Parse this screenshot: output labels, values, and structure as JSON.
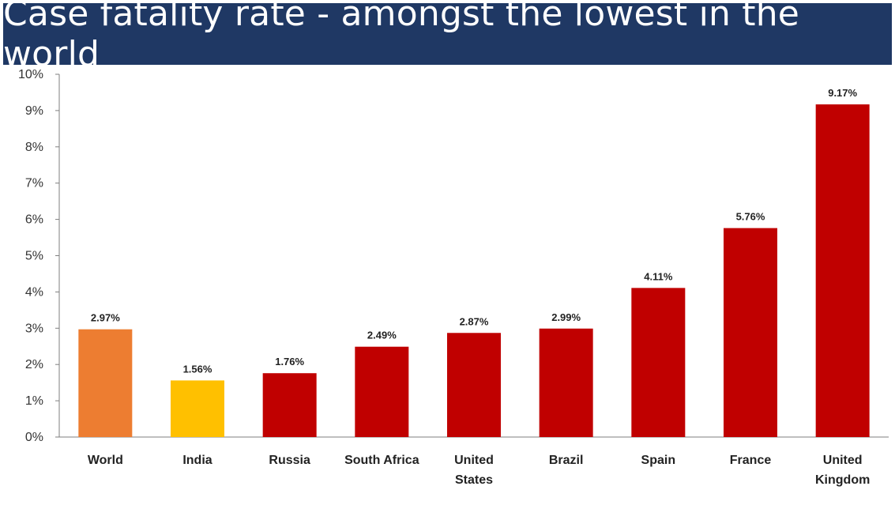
{
  "chart_data": {
    "type": "bar",
    "title": "Case fatality rate - amongst the lowest in the world",
    "categories": [
      [
        "World"
      ],
      [
        "India"
      ],
      [
        "Russia"
      ],
      [
        "South Africa"
      ],
      [
        "United",
        "States"
      ],
      [
        "Brazil"
      ],
      [
        "Spain"
      ],
      [
        "France"
      ],
      [
        "United",
        "Kingdom"
      ]
    ],
    "values": [
      2.97,
      1.56,
      1.76,
      2.49,
      2.87,
      2.99,
      4.11,
      5.76,
      9.17
    ],
    "data_labels": [
      "2.97%",
      "1.56%",
      "1.76%",
      "2.49%",
      "2.87%",
      "2.99%",
      "4.11%",
      "5.76%",
      "9.17%"
    ],
    "bar_colors": [
      "#ed7d31",
      "#ffc000",
      "#c00000",
      "#c00000",
      "#c00000",
      "#c00000",
      "#c00000",
      "#c00000",
      "#c00000"
    ],
    "yticks": [
      "0%",
      "1%",
      "2%",
      "3%",
      "4%",
      "5%",
      "6%",
      "7%",
      "8%",
      "9%",
      "10%"
    ],
    "ylim": [
      0,
      10
    ],
    "xlabel": "",
    "ylabel": "",
    "grid": false,
    "legend": "none"
  },
  "colors": {
    "banner": "#1f3864",
    "axis": "#7f7f7f"
  }
}
